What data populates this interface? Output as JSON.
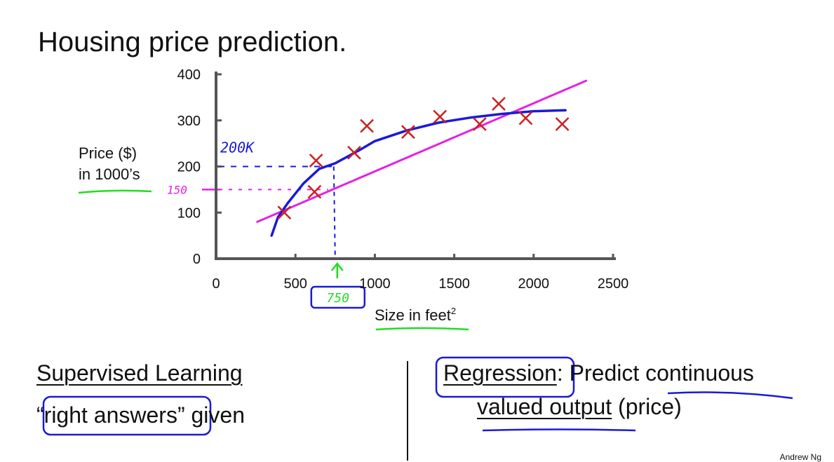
{
  "slide": {
    "title": "Housing price prediction.",
    "ylabel_line1": "Price ($)",
    "ylabel_line2": "in 1000’s",
    "xlabel": "Size in feet",
    "xlabel_sup": "2",
    "left": {
      "heading": "Supervised Learning",
      "text_quoted": "“right answers”",
      "text_rest": " given"
    },
    "right": {
      "term": "Regression",
      "line1_rest": ": Predict continuous",
      "line2_a": "valued output",
      "line2_b": " (price)"
    },
    "credit": "Andrew Ng"
  },
  "annotations": {
    "price_200k": "200K",
    "price_150": "150",
    "size_750": "750"
  },
  "colors": {
    "points": "#cc1f1f",
    "curve": "#1a1adb",
    "line": "#e620e6",
    "green": "#22dd22",
    "axis": "#555555"
  },
  "chart_data": {
    "type": "scatter",
    "title": "",
    "xlabel": "Size in feet²",
    "ylabel": "Price ($) in 1000’s",
    "xlim": [
      0,
      2500
    ],
    "ylim": [
      0,
      400
    ],
    "xticks": [
      0,
      500,
      1000,
      1500,
      2000,
      2500
    ],
    "yticks": [
      0,
      100,
      200,
      300,
      400
    ],
    "x_ticklabels": [
      "0",
      "500",
      "1000",
      "1500",
      "2000",
      "2500"
    ],
    "y_ticklabels": [
      "0",
      "100",
      "200",
      "300",
      "400"
    ],
    "points": [
      {
        "x": 430,
        "y": 100
      },
      {
        "x": 620,
        "y": 145
      },
      {
        "x": 630,
        "y": 213
      },
      {
        "x": 870,
        "y": 230
      },
      {
        "x": 950,
        "y": 288
      },
      {
        "x": 1210,
        "y": 275
      },
      {
        "x": 1410,
        "y": 308
      },
      {
        "x": 1660,
        "y": 292
      },
      {
        "x": 1780,
        "y": 336
      },
      {
        "x": 1950,
        "y": 305
      },
      {
        "x": 2180,
        "y": 292
      }
    ],
    "linear_fit": [
      [
        260,
        80
      ],
      [
        2330,
        386
      ]
    ],
    "quadratic_fit": [
      [
        350,
        50
      ],
      [
        390,
        90
      ],
      [
        450,
        120
      ],
      [
        550,
        163
      ],
      [
        650,
        195
      ],
      [
        750,
        207
      ],
      [
        900,
        235
      ],
      [
        1000,
        255
      ],
      [
        1200,
        278
      ],
      [
        1400,
        295
      ],
      [
        1600,
        306
      ],
      [
        1800,
        314
      ],
      [
        2000,
        320
      ],
      [
        2200,
        322
      ]
    ],
    "guides": [
      {
        "x": 750,
        "y": 200,
        "label": "200K"
      },
      {
        "x": 750,
        "y": 150,
        "label": "150"
      }
    ]
  }
}
